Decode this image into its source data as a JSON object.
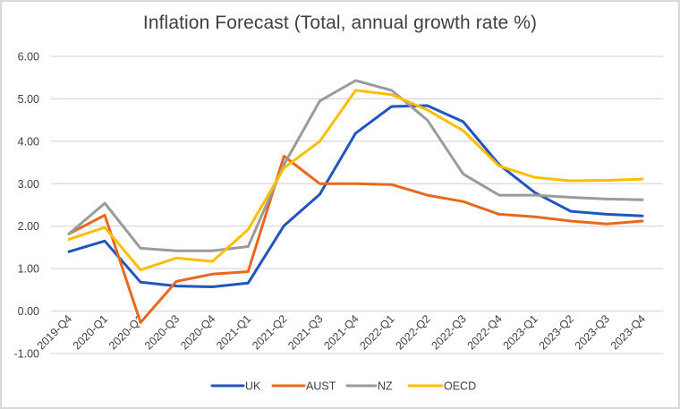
{
  "chart_data": {
    "type": "line",
    "title": "Inflation Forecast (Total, annual growth rate %)",
    "xlabel": "",
    "ylabel": "",
    "ylim": [
      -1.0,
      6.0
    ],
    "yticks": [
      -1.0,
      0.0,
      1.0,
      2.0,
      3.0,
      4.0,
      5.0,
      6.0
    ],
    "ytick_labels": [
      "-1.00",
      "0.00",
      "1.00",
      "2.00",
      "3.00",
      "4.00",
      "5.00",
      "6.00"
    ],
    "grid": true,
    "legend_position": "bottom",
    "categories": [
      "2019-Q4",
      "2020-Q1",
      "2020-Q2",
      "2020-Q3",
      "2020-Q4",
      "2021-Q1",
      "2021-Q2",
      "2021-Q3",
      "2021-Q4",
      "2022-Q1",
      "2022-Q2",
      "2022-Q3",
      "2022-Q4",
      "2023-Q1",
      "2023-Q2",
      "2023-Q3",
      "2023-Q4"
    ],
    "series": [
      {
        "name": "UK",
        "color": "#2155bd",
        "values": [
          1.4,
          1.65,
          0.68,
          0.59,
          0.57,
          0.66,
          2.01,
          2.75,
          4.19,
          4.82,
          4.84,
          4.46,
          3.45,
          2.79,
          2.35,
          2.28,
          2.24
        ]
      },
      {
        "name": "AUST",
        "color": "#e8681e",
        "values": [
          1.82,
          2.26,
          -0.27,
          0.7,
          0.87,
          0.93,
          3.65,
          3.0,
          3.0,
          2.98,
          2.73,
          2.58,
          2.28,
          2.22,
          2.12,
          2.05,
          2.12
        ]
      },
      {
        "name": "NZ",
        "color": "#9b9b9b",
        "values": [
          1.82,
          2.54,
          1.48,
          1.42,
          1.42,
          1.52,
          3.45,
          4.95,
          5.43,
          5.2,
          4.5,
          3.23,
          2.73,
          2.73,
          2.68,
          2.64,
          2.62
        ]
      },
      {
        "name": "OECD",
        "color": "#ffbe00",
        "values": [
          1.69,
          1.97,
          0.97,
          1.25,
          1.17,
          1.92,
          3.37,
          4.0,
          5.2,
          5.1,
          4.74,
          4.25,
          3.42,
          3.15,
          3.07,
          3.08,
          3.11
        ]
      }
    ]
  },
  "colors": {
    "gridline": "#d9d9d9",
    "text": "#404040",
    "border": "#d9d9d9"
  }
}
